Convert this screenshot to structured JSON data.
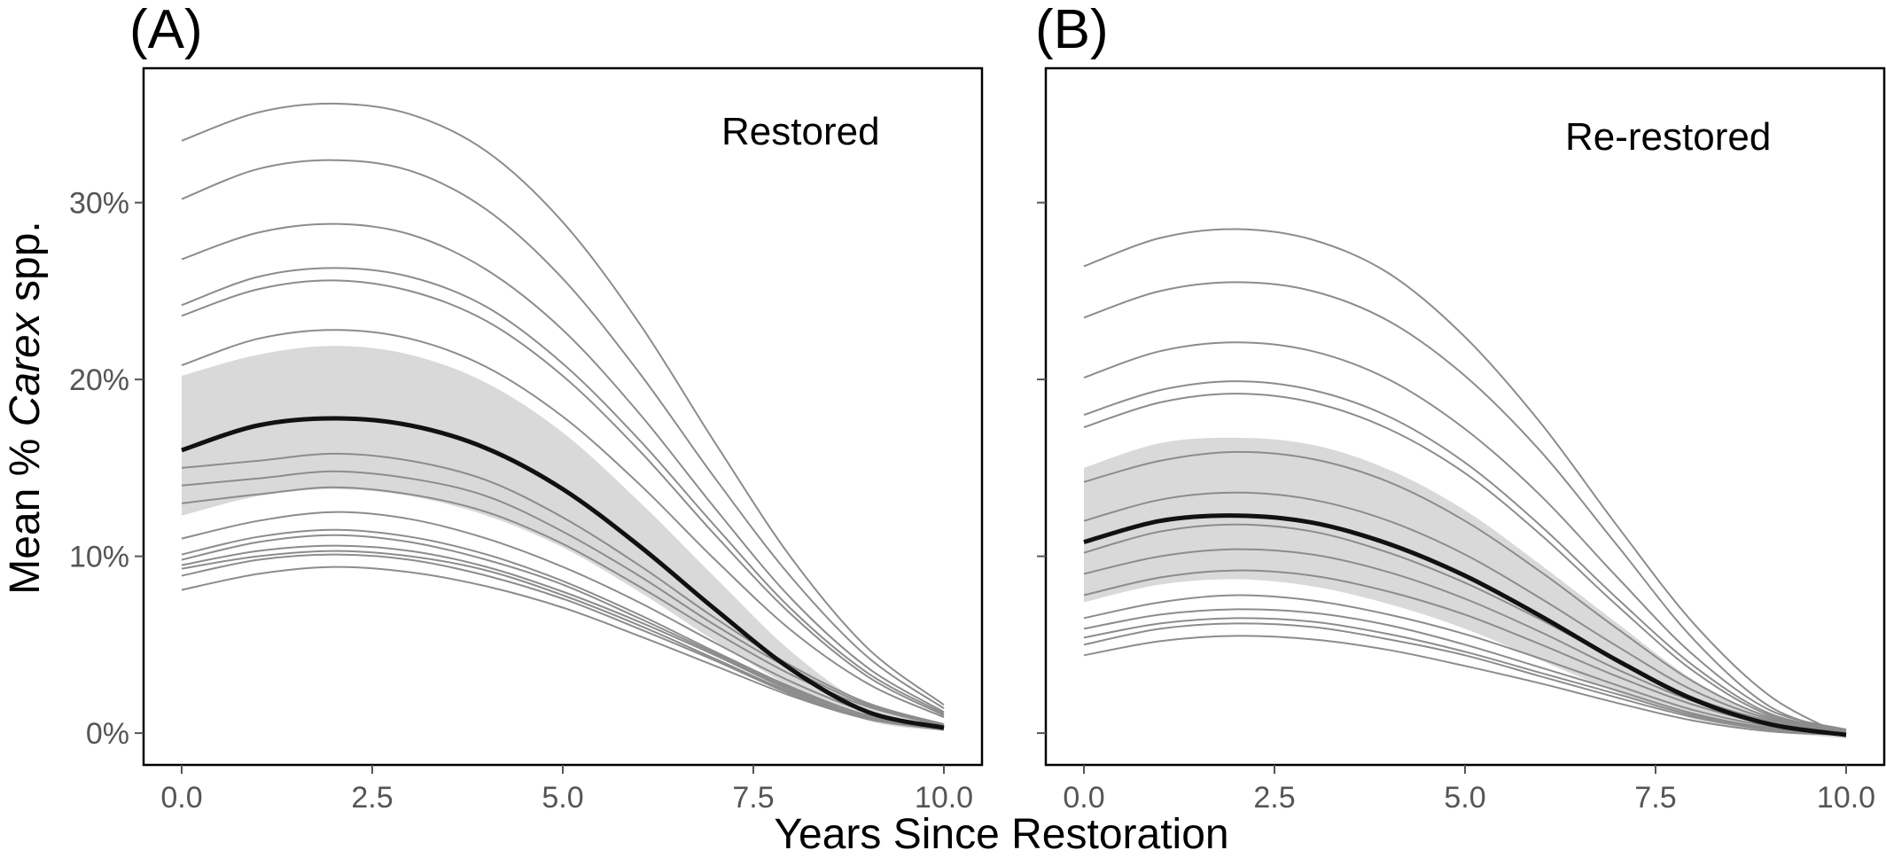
{
  "chart_data": [
    {
      "type": "line",
      "panel_tag": "(A)",
      "label": "Restored",
      "xlabel": "Years Since Restoration",
      "ylabel": {
        "prefix": "Mean % ",
        "italic": "Carex",
        "suffix": " spp."
      },
      "xlim": [
        -0.5,
        10.5
      ],
      "ylim": [
        -1.8,
        37.6
      ],
      "x_ticks": [
        0,
        2.5,
        5,
        7.5,
        10
      ],
      "x_tick_labels": [
        "0.0",
        "2.5",
        "5.0",
        "7.5",
        "10.0"
      ],
      "y_ticks": [
        0,
        10,
        20,
        30
      ],
      "y_tick_labels": [
        "0%",
        "10%",
        "20%",
        "30%"
      ],
      "grid": false,
      "x": [
        0,
        1,
        2,
        3,
        4,
        5,
        6,
        7,
        8,
        9,
        10
      ],
      "mean": [
        16.0,
        17.4,
        17.8,
        17.4,
        16.1,
        13.8,
        10.6,
        7.0,
        3.6,
        1.2,
        0.3
      ],
      "ci_upper": [
        20.2,
        21.4,
        21.9,
        21.4,
        19.8,
        17.0,
        13.1,
        8.8,
        4.6,
        1.6,
        0.5
      ],
      "ci_lower": [
        12.3,
        13.4,
        13.8,
        13.4,
        12.3,
        10.5,
        8.0,
        5.2,
        2.6,
        0.7,
        0.1
      ],
      "site_curves": [
        [
          33.5,
          35.1,
          35.6,
          35.0,
          32.9,
          28.9,
          23.2,
          16.4,
          9.9,
          4.8,
          1.6
        ],
        [
          30.2,
          31.9,
          32.4,
          31.8,
          29.6,
          25.7,
          20.4,
          14.4,
          8.8,
          4.3,
          1.4
        ],
        [
          26.8,
          28.3,
          28.8,
          28.2,
          26.2,
          22.8,
          18.1,
          12.7,
          7.6,
          3.7,
          1.2
        ],
        [
          24.2,
          25.8,
          26.3,
          25.8,
          24.1,
          20.9,
          16.6,
          11.7,
          7.0,
          3.4,
          1.1
        ],
        [
          23.6,
          25.1,
          25.6,
          25.0,
          23.3,
          20.2,
          16.0,
          11.2,
          6.7,
          3.2,
          1.0
        ],
        [
          20.8,
          22.3,
          22.8,
          22.3,
          20.7,
          17.9,
          14.1,
          9.8,
          5.8,
          2.8,
          0.9
        ],
        [
          15.0,
          15.4,
          15.8,
          15.4,
          14.3,
          12.2,
          9.5,
          6.5,
          3.8,
          1.7,
          0.5
        ],
        [
          14.0,
          14.4,
          14.8,
          14.4,
          13.4,
          11.4,
          8.9,
          6.1,
          3.6,
          1.6,
          0.5
        ],
        [
          13.0,
          13.5,
          13.9,
          13.5,
          12.5,
          10.7,
          8.3,
          5.7,
          3.3,
          1.5,
          0.4
        ],
        [
          11.0,
          12.0,
          12.5,
          12.1,
          11.0,
          9.4,
          7.4,
          5.1,
          2.9,
          1.2,
          0.3
        ],
        [
          10.1,
          11.1,
          11.5,
          11.1,
          10.1,
          8.6,
          6.7,
          4.6,
          2.6,
          1.0,
          0.3
        ],
        [
          9.8,
          10.8,
          11.2,
          10.8,
          9.8,
          8.4,
          6.5,
          4.5,
          2.5,
          1.0,
          0.3
        ],
        [
          9.5,
          10.3,
          10.6,
          10.3,
          9.4,
          8.0,
          6.3,
          4.4,
          2.4,
          0.9,
          0.3
        ],
        [
          9.3,
          10.0,
          10.3,
          10.0,
          9.2,
          7.8,
          6.1,
          4.2,
          2.3,
          0.9,
          0.3
        ],
        [
          8.9,
          9.8,
          10.1,
          9.8,
          8.9,
          7.6,
          5.9,
          4.1,
          2.2,
          0.8,
          0.2
        ],
        [
          8.1,
          9.0,
          9.4,
          9.1,
          8.3,
          7.1,
          5.5,
          3.8,
          2.1,
          0.8,
          0.2
        ]
      ]
    },
    {
      "type": "line",
      "panel_tag": "(B)",
      "label": "Re-restored",
      "xlabel": "Years Since Restoration",
      "xlim": [
        -0.5,
        10.5
      ],
      "ylim": [
        -1.8,
        37.6
      ],
      "x_ticks": [
        0,
        2.5,
        5,
        7.5,
        10
      ],
      "x_tick_labels": [
        "0.0",
        "2.5",
        "5.0",
        "7.5",
        "10.0"
      ],
      "grid": false,
      "x": [
        0,
        1,
        2,
        3,
        4,
        5,
        6,
        7,
        8,
        9,
        10
      ],
      "mean": [
        10.8,
        12.0,
        12.3,
        11.9,
        10.7,
        8.9,
        6.6,
        4.1,
        1.9,
        0.5,
        -0.1
      ],
      "ci_upper": [
        15.0,
        16.4,
        16.7,
        16.3,
        14.9,
        12.6,
        9.5,
        6.2,
        3.0,
        0.9,
        0.1
      ],
      "ci_lower": [
        7.4,
        8.4,
        8.7,
        8.3,
        7.3,
        5.9,
        4.1,
        2.3,
        0.8,
        0.1,
        -0.3
      ],
      "site_curves": [
        [
          26.4,
          28.0,
          28.5,
          27.9,
          26.0,
          22.4,
          17.5,
          11.7,
          6.2,
          2.1,
          -0.2
        ],
        [
          23.5,
          25.0,
          25.5,
          25.0,
          23.3,
          20.2,
          15.9,
          10.6,
          5.3,
          1.5,
          0.0
        ],
        [
          20.1,
          21.6,
          22.1,
          21.6,
          20.0,
          17.2,
          13.4,
          8.8,
          4.4,
          1.3,
          0.2
        ],
        [
          18.0,
          19.4,
          19.9,
          19.4,
          17.9,
          15.3,
          11.7,
          7.6,
          3.8,
          1.1,
          0.2
        ],
        [
          17.3,
          18.7,
          19.2,
          18.7,
          17.2,
          14.7,
          11.2,
          7.2,
          3.5,
          1.0,
          0.2
        ],
        [
          14.2,
          15.4,
          15.9,
          15.5,
          14.2,
          12.0,
          9.1,
          5.9,
          2.9,
          0.9,
          0.2
        ],
        [
          12.0,
          13.2,
          13.6,
          13.2,
          12.0,
          10.1,
          7.6,
          4.9,
          2.4,
          0.8,
          0.2
        ],
        [
          10.2,
          11.4,
          11.8,
          11.4,
          10.2,
          8.5,
          6.4,
          4.1,
          2.0,
          0.7,
          0.2
        ],
        [
          9.0,
          10.0,
          10.4,
          10.1,
          9.1,
          7.6,
          5.7,
          3.6,
          1.8,
          0.6,
          0.1
        ],
        [
          7.8,
          8.8,
          9.2,
          8.9,
          8.0,
          6.7,
          5.0,
          3.2,
          1.6,
          0.5,
          0.1
        ],
        [
          6.5,
          7.4,
          7.8,
          7.5,
          6.7,
          5.6,
          4.2,
          2.7,
          1.3,
          0.4,
          0.1
        ],
        [
          5.9,
          6.7,
          7.0,
          6.8,
          6.1,
          5.0,
          3.7,
          2.4,
          1.1,
          0.3,
          0.1
        ],
        [
          5.4,
          6.2,
          6.5,
          6.3,
          5.6,
          4.6,
          3.4,
          2.2,
          1.0,
          0.3,
          0.1
        ],
        [
          5.0,
          5.9,
          6.2,
          6.0,
          5.3,
          4.4,
          3.2,
          2.0,
          0.9,
          0.2,
          0.0
        ],
        [
          4.4,
          5.2,
          5.5,
          5.3,
          4.7,
          3.8,
          2.8,
          1.7,
          0.7,
          0.1,
          -0.1
        ]
      ]
    }
  ]
}
